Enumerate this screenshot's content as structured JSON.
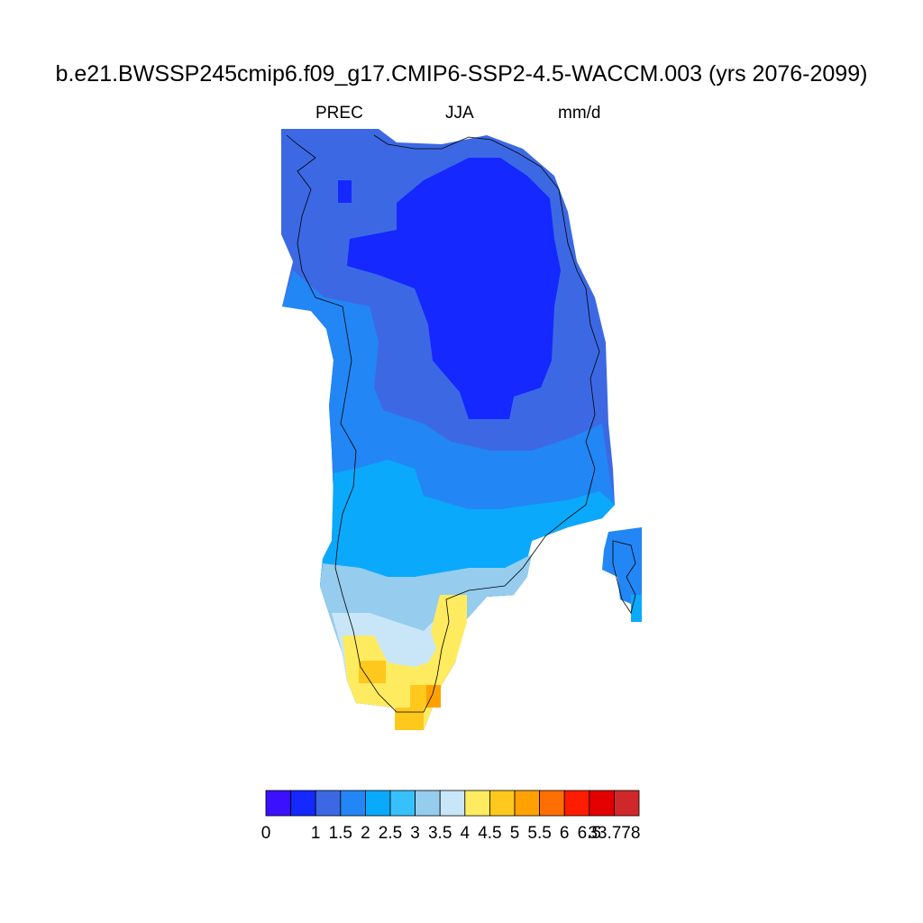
{
  "title": "b.e21.BWSSP245cmip6.f09_g17.CMIP6-SSP2-4.5-WACCM.003 (yrs 2076-2099)",
  "subtitle": {
    "variable": "PREC",
    "season": "JJA",
    "units": "mm/d"
  },
  "colorbar": {
    "colors": [
      "#3b10ff",
      "#1428ff",
      "#3c69e3",
      "#2386f5",
      "#0aa9fb",
      "#36c1fc",
      "#96cced",
      "#c8e6f8",
      "#ffeb5f",
      "#ffc81d",
      "#ffa100",
      "#ff6e00",
      "#ff1c00",
      "#e30000",
      "#d02828"
    ],
    "labels": [
      "0",
      "1",
      "1.5",
      "2",
      "2.5",
      "3",
      "3.5",
      "4",
      "4.5",
      "5",
      "5.5",
      "6",
      "6.5",
      "33.778"
    ]
  },
  "map": {
    "region": "Greenland",
    "color_levels": [
      "dark-blue (<1)",
      "blue (1-1.5)",
      "mid-blue (1.5-2)",
      "light-blue (2-2.5)",
      "cyan (2.5-3)",
      "pale-blue (3-4)",
      "yellow (4-5)",
      "orange (5-5.5)"
    ]
  }
}
